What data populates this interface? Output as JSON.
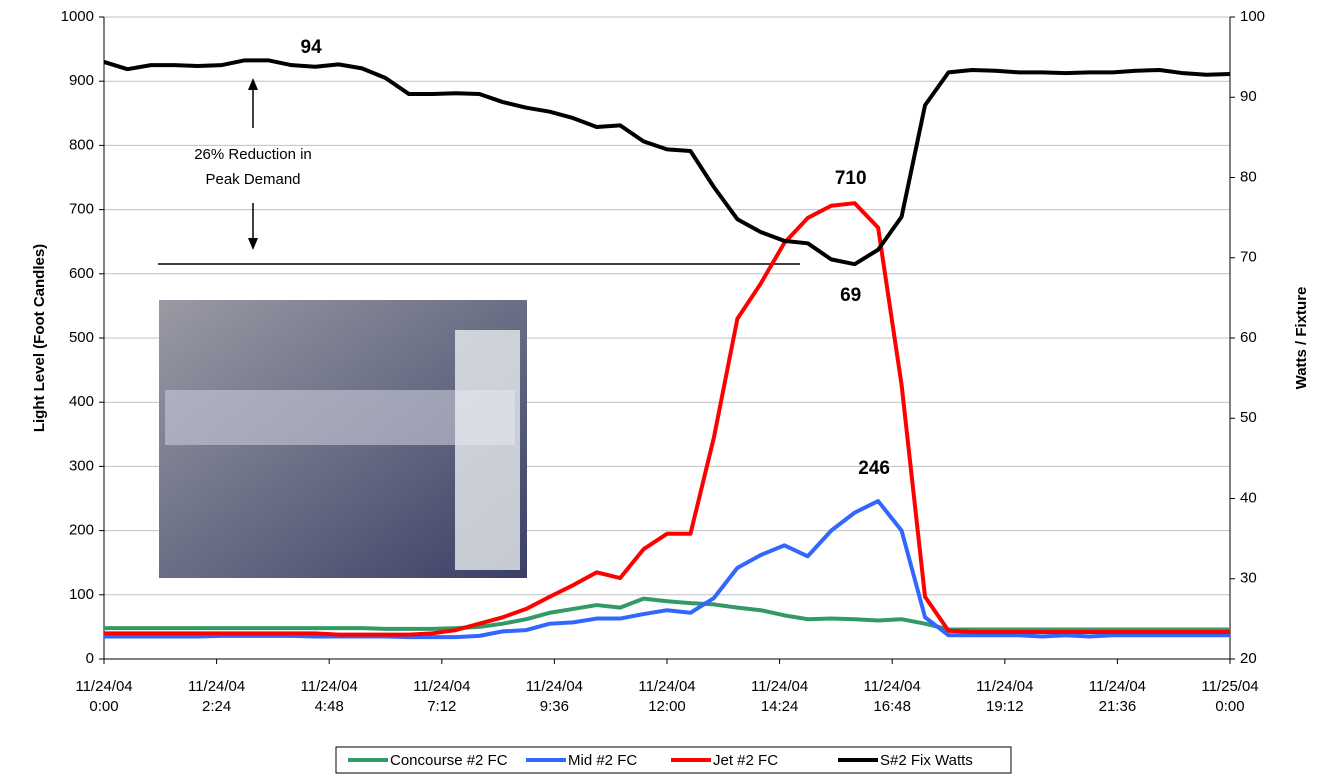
{
  "chart_data": {
    "type": "line",
    "y_label": "Light Level (Foot Candles)",
    "y2_label": "Watts / Fixture",
    "annotation": [
      "26% Reduction in",
      "Peak Demand"
    ],
    "x": [
      0,
      0.5,
      1,
      1.5,
      2,
      2.5,
      3,
      3.5,
      4,
      4.5,
      5,
      5.5,
      6,
      6.5,
      7,
      7.5,
      8,
      8.5,
      9,
      9.5,
      10,
      10.5,
      11,
      11.5,
      12,
      12.5,
      13,
      13.5,
      14,
      14.5,
      15,
      15.5,
      16,
      16.5,
      17,
      17.5,
      18,
      18.5,
      19,
      19.5,
      20,
      20.5,
      21,
      21.5,
      22,
      22.5,
      23,
      23.5,
      24
    ],
    "xlim": [
      0,
      24
    ],
    "xticks": [
      {
        "value": 0,
        "label": [
          "11/24/04",
          "0:00"
        ]
      },
      {
        "value": 2.4,
        "label": [
          "11/24/04",
          "2:24"
        ]
      },
      {
        "value": 4.8,
        "label": [
          "11/24/04",
          "4:48"
        ]
      },
      {
        "value": 7.2,
        "label": [
          "11/24/04",
          "7:12"
        ]
      },
      {
        "value": 9.6,
        "label": [
          "11/24/04",
          "9:36"
        ]
      },
      {
        "value": 12,
        "label": [
          "11/24/04",
          "12:00"
        ]
      },
      {
        "value": 14.4,
        "label": [
          "11/24/04",
          "14:24"
        ]
      },
      {
        "value": 16.8,
        "label": [
          "11/24/04",
          "16:48"
        ]
      },
      {
        "value": 19.2,
        "label": [
          "11/24/04",
          "19:12"
        ]
      },
      {
        "value": 21.6,
        "label": [
          "11/24/04",
          "21:36"
        ]
      },
      {
        "value": 24,
        "label": [
          "11/25/04",
          "0:00"
        ]
      }
    ],
    "ylim": [
      0,
      1000
    ],
    "yticks": [
      0,
      100,
      200,
      300,
      400,
      500,
      600,
      700,
      800,
      900,
      1000
    ],
    "y2lim": [
      20,
      100
    ],
    "y2ticks": [
      20,
      30,
      40,
      50,
      60,
      70,
      80,
      90,
      100
    ],
    "grid": true,
    "series": [
      {
        "name": "Concourse #2 FC",
        "color": "#339966",
        "values": [
          48,
          48,
          48,
          48,
          48,
          48,
          48,
          48,
          48,
          48,
          48,
          48,
          47,
          47,
          47,
          48,
          50,
          55,
          62,
          72,
          78,
          84,
          80,
          94,
          90,
          87,
          85,
          80,
          76,
          68,
          62,
          63,
          62,
          60,
          62,
          55,
          46,
          46,
          46,
          46,
          46,
          46,
          46,
          46,
          46,
          46,
          46,
          46,
          46
        ]
      },
      {
        "name": "Mid #2 FC",
        "color": "#3366ff",
        "values": [
          35,
          35,
          35,
          35,
          35,
          36,
          36,
          36,
          36,
          35,
          35,
          35,
          35,
          34,
          34,
          34,
          36,
          43,
          45,
          55,
          57,
          63,
          63,
          70,
          76,
          72,
          95,
          142,
          162,
          177,
          160,
          200,
          228,
          246,
          200,
          65,
          37,
          37,
          37,
          37,
          35,
          37,
          35,
          37,
          37,
          37,
          37,
          37,
          37
        ],
        "value_labels": [
          null,
          null,
          null,
          null,
          null,
          null,
          null,
          null,
          null,
          null,
          null,
          null,
          null,
          null,
          null,
          null,
          null,
          null,
          null,
          null,
          null,
          null,
          null,
          null,
          null,
          null,
          null,
          null,
          null,
          null,
          null,
          null,
          null,
          "246",
          null,
          null,
          null,
          null,
          null,
          null,
          null,
          null,
          null,
          null,
          null,
          null,
          null,
          null,
          null
        ]
      },
      {
        "name": "Jet #2 FC",
        "color": "#ff0000",
        "values": [
          40,
          40,
          40,
          40,
          40,
          40,
          40,
          40,
          40,
          40,
          38,
          38,
          38,
          38,
          40,
          45,
          55,
          65,
          78,
          97,
          115,
          135,
          126,
          171,
          195,
          195,
          345,
          530,
          585,
          648,
          687,
          706,
          710,
          672,
          427,
          97,
          44,
          42,
          42,
          42,
          42,
          42,
          42,
          42,
          42,
          42,
          42,
          42,
          42
        ],
        "value_labels": [
          null,
          null,
          null,
          null,
          null,
          null,
          null,
          null,
          null,
          null,
          null,
          null,
          null,
          null,
          null,
          null,
          null,
          null,
          null,
          null,
          null,
          null,
          null,
          null,
          null,
          null,
          null,
          null,
          null,
          null,
          null,
          null,
          "710",
          null,
          null,
          null,
          null,
          null,
          null,
          null,
          null,
          null,
          null,
          null,
          null,
          null,
          null,
          null,
          null
        ]
      },
      {
        "name": "S#2 Fix Watts",
        "color": "#000000",
        "axis": "y2",
        "values": [
          94.4,
          93.5,
          94.0,
          94.0,
          93.9,
          94.0,
          94.6,
          94.6,
          94.0,
          93.8,
          94.1,
          93.6,
          92.4,
          90.4,
          90.4,
          90.5,
          90.4,
          89.4,
          88.7,
          88.2,
          87.4,
          86.3,
          86.5,
          84.5,
          83.5,
          83.3,
          78.8,
          74.8,
          73.2,
          72.1,
          71.8,
          69.8,
          69.2,
          71.0,
          75.1,
          89.0,
          93.1,
          93.4,
          93.3,
          93.1,
          93.1,
          93.0,
          93.1,
          93.1,
          93.3,
          93.4,
          93.0,
          92.8,
          92.9
        ],
        "value_labels": [
          null,
          null,
          null,
          null,
          null,
          null,
          null,
          null,
          null,
          "94",
          null,
          null,
          null,
          null,
          null,
          null,
          null,
          null,
          null,
          null,
          null,
          null,
          null,
          null,
          null,
          null,
          null,
          null,
          null,
          null,
          null,
          null,
          "69",
          null,
          null,
          null,
          null,
          null,
          null,
          null,
          null,
          null,
          null,
          null,
          null,
          null,
          null,
          null,
          null
        ]
      }
    ]
  }
}
